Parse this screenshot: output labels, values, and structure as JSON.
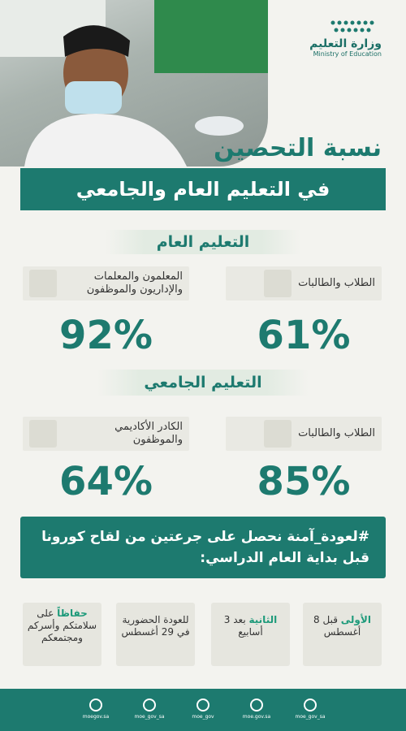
{
  "header": {
    "ministry_ar": "وزارة التعليم",
    "ministry_en": "Ministry of Education",
    "title": "نسبة التحصين",
    "subtitle": "في التعليم العام والجامعي"
  },
  "sections": [
    {
      "heading": "التعليم العام",
      "groups": [
        {
          "label": "الطلاب والطالبات",
          "percent": "61%"
        },
        {
          "label": "المعلمون والمعلمات والإداريون والموظفون",
          "percent": "92%"
        }
      ]
    },
    {
      "heading": "التعليم الجامعي",
      "groups": [
        {
          "label": "الطلاب والطالبات",
          "percent": "85%"
        },
        {
          "label": "الكادر الأكاديمي والموظفون",
          "percent": "64%"
        }
      ]
    }
  ],
  "banner": "#لعودة_آمنة نحصل على جرعتين من لقاح كورونا قبل بداية العام الدراسي:",
  "steps": [
    {
      "highlight": "الأولى",
      "text": "قبل 8 أغسطس"
    },
    {
      "highlight": "الثانية",
      "text": "بعد 3 أسابيع"
    },
    {
      "text": "للعودة الحضورية في 29 أغسطس"
    },
    {
      "highlight": "حفاظاً",
      "text": "على سلامتكم وأسركم ومجتمعكم"
    }
  ],
  "footer": [
    "moegov.sa",
    "moe_gov_sa",
    "moe_gov",
    "moe.gov.sa",
    "moe_gov_sa"
  ]
}
